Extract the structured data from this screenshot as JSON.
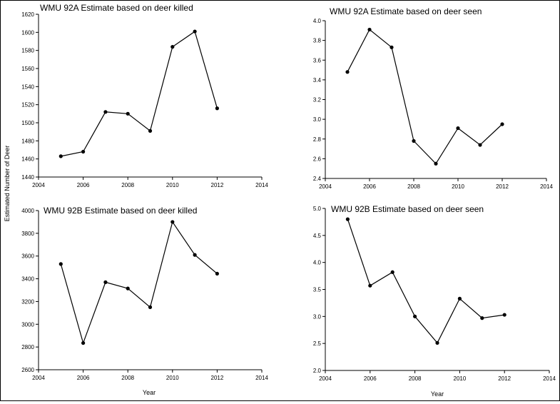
{
  "figure": {
    "shared_ylabel": "Estimated Number of Deer",
    "shared_xlabel": "Year"
  },
  "chart_data": [
    {
      "type": "line",
      "title": "WMU 92A Estimate based on deer killed",
      "xlabel": "",
      "ylabel": "",
      "xlim": [
        2004,
        2014
      ],
      "ylim": [
        1440,
        1620
      ],
      "xticks": [
        2004,
        2006,
        2008,
        2010,
        2012,
        2014
      ],
      "yticks": [
        1440,
        1460,
        1480,
        1500,
        1520,
        1540,
        1560,
        1580,
        1600,
        1620
      ],
      "ytick_labels": [
        "1440",
        "1460",
        "1480",
        "1500",
        "1520",
        "1540",
        "1560",
        "1580",
        "1600",
        "1620"
      ],
      "series": [
        {
          "x": [
            2005,
            2006,
            2007,
            2008,
            2009,
            2010,
            2011,
            2012
          ],
          "y": [
            1463,
            1468,
            1512,
            1510,
            1491,
            1584,
            1601,
            1516
          ]
        }
      ],
      "grid": false,
      "color": "#000000"
    },
    {
      "type": "line",
      "title": "WMU 92A Estimate based on deer seen",
      "xlabel": "",
      "ylabel": "",
      "xlim": [
        2004,
        2014
      ],
      "ylim": [
        2.4,
        4.0
      ],
      "xticks": [
        2004,
        2006,
        2008,
        2010,
        2012,
        2014
      ],
      "yticks": [
        2.4,
        2.6,
        2.8,
        3.0,
        3.2,
        3.4,
        3.6,
        3.8,
        4.0
      ],
      "ytick_labels": [
        "2.4",
        "2.6",
        "2.8",
        "3.0",
        "3.2",
        "3.4",
        "3.6",
        "3.8",
        "4.0"
      ],
      "series": [
        {
          "x": [
            2005,
            2006,
            2007,
            2008,
            2009,
            2010,
            2011,
            2012
          ],
          "y": [
            3.48,
            3.91,
            3.73,
            2.78,
            2.55,
            2.91,
            2.74,
            2.95
          ]
        }
      ],
      "grid": false,
      "color": "#000000"
    },
    {
      "type": "line",
      "title": "WMU 92B Estimate based on deer killed",
      "xlabel": "",
      "ylabel": "",
      "xlim": [
        2004,
        2014
      ],
      "ylim": [
        2600,
        4000
      ],
      "xticks": [
        2004,
        2006,
        2008,
        2010,
        2012,
        2014
      ],
      "yticks": [
        2600,
        2800,
        3000,
        3200,
        3400,
        3600,
        3800,
        4000
      ],
      "ytick_labels": [
        "2600",
        "2800",
        "3000",
        "3200",
        "3400",
        "3600",
        "3800",
        "4000"
      ],
      "series": [
        {
          "x": [
            2005,
            2006,
            2007,
            2008,
            2009,
            2010,
            2011,
            2012
          ],
          "y": [
            3530,
            2835,
            3370,
            3315,
            3150,
            3900,
            3610,
            3445
          ]
        }
      ],
      "grid": false,
      "color": "#000000"
    },
    {
      "type": "line",
      "title": "WMU 92B Estimate based on deer seen",
      "xlabel": "",
      "ylabel": "",
      "xlim": [
        2004,
        2014
      ],
      "ylim": [
        2.0,
        5.0
      ],
      "xticks": [
        2004,
        2006,
        2008,
        2010,
        2012,
        2014
      ],
      "yticks": [
        2.0,
        2.5,
        3.0,
        3.5,
        4.0,
        4.5,
        5.0
      ],
      "ytick_labels": [
        "2.0",
        "2.5",
        "3.0",
        "3.5",
        "4.0",
        "4.5",
        "5.0"
      ],
      "series": [
        {
          "x": [
            2005,
            2006,
            2007,
            2008,
            2009,
            2010,
            2011,
            2012
          ],
          "y": [
            4.8,
            3.57,
            3.82,
            3.0,
            2.51,
            3.33,
            2.97,
            3.03
          ]
        }
      ],
      "grid": false,
      "color": "#000000"
    }
  ]
}
